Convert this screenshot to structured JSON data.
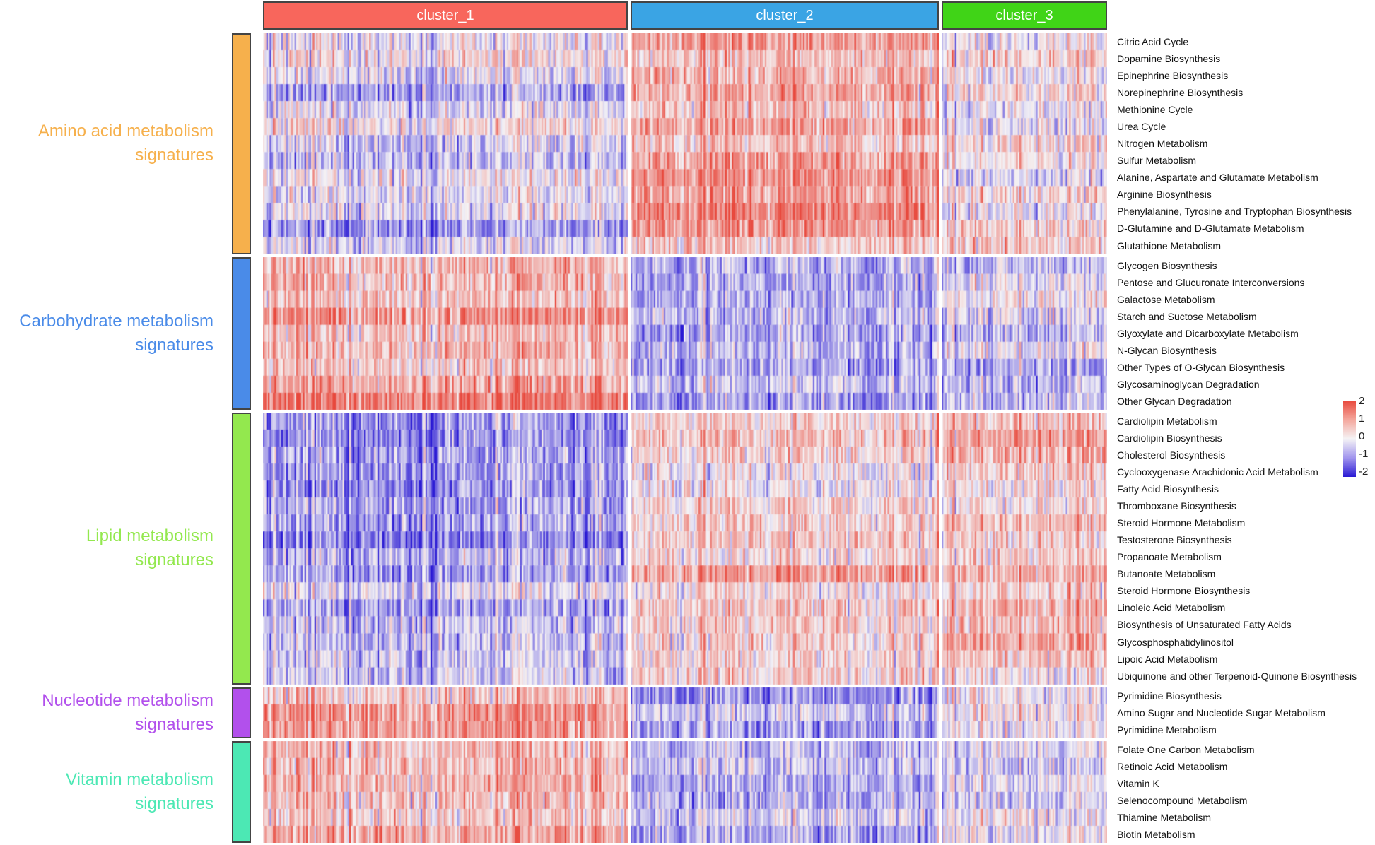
{
  "chart_data": {
    "type": "heatmap",
    "title": "",
    "color_scale": {
      "min": -2,
      "max": 2,
      "ticks": [
        "2",
        "1",
        "0",
        "-1",
        "-2"
      ],
      "colors": {
        "high": "#e8483c",
        "mid": "#f5f3f5",
        "low": "#2a1ad4"
      }
    },
    "clusters": [
      {
        "name": "cluster_1",
        "color": "#f8665c",
        "samples": 220
      },
      {
        "name": "cluster_2",
        "color": "#3aa4e4",
        "samples": 186
      },
      {
        "name": "cluster_3",
        "color": "#40d417",
        "samples": 100
      }
    ],
    "groups": [
      {
        "line1": "Amino acid metabolism",
        "line2": "signatures",
        "color": "#f6b04c",
        "pattern": [
          -0.3,
          0.8,
          0.0
        ],
        "pathways": [
          "Citric Acid Cycle",
          "Dopamine Biosynthesis",
          "Epinephrine Biosynthesis",
          "Norepinephrine Biosynthesis",
          "Methionine Cycle",
          "Urea Cycle",
          "Nitrogen Metabolism",
          "Sulfur Metabolism",
          "Alanine, Aspartate and Glutamate Metabolism",
          "Arginine Biosynthesis",
          "Phenylalanine, Tyrosine and Tryptophan Biosynthesis",
          "D-Glutamine and D-Glutamate Metabolism",
          "Glutathione Metabolism"
        ]
      },
      {
        "line1": "Carbohydrate metabolism",
        "line2": "signatures",
        "color": "#4a8be8",
        "pattern": [
          0.8,
          -0.6,
          -0.2
        ],
        "pathways": [
          "Glycogen Biosynthesis",
          "Pentose and Glucuronate Interconversions",
          "Galactose Metabolism",
          "Starch and Suctose Metabolism",
          "Glyoxylate and Dicarboxylate Metabolism",
          "N-Glycan Biosynthesis",
          "Other Types of O-Glycan Biosynthesis",
          "Glycosaminoglycan Degradation",
          "Other Glycan Degradation"
        ]
      },
      {
        "line1": "Lipid metabolism",
        "line2": "signatures",
        "color": "#93e84e",
        "pattern": [
          -0.7,
          0.4,
          0.6
        ],
        "pathways": [
          "Cardiolipin Metabolism",
          "Cardiolipin Biosynthesis",
          "Cholesterol Biosynthesis",
          "Cyclooxygenase Arachidonic Acid Metabolism",
          "Fatty Acid Biosynthesis",
          "Thromboxane Biosynthesis",
          "Steroid Hormone Metabolism",
          "Testosterone Biosynthesis",
          "Propanoate Metabolism",
          "Butanoate Metabolism",
          "Steroid Hormone Biosynthesis",
          "Linoleic Acid Metabolism",
          "Biosynthesis of Unsaturated Fatty Acids",
          "Glycosphosphatidylinositol",
          "Lipoic Acid Metabolism",
          "Ubiquinone and other Terpenoid-Quinone Biosynthesis"
        ]
      },
      {
        "line1": "Nucleotide metabolism",
        "line2": "signatures",
        "color": "#b250ec",
        "pattern": [
          0.8,
          -0.7,
          0.0
        ],
        "pathways": [
          "Pyrimidine Biosynthesis",
          "Amino Sugar and Nucleotide Sugar Metabolism",
          "Pyrimidine Metabolism"
        ]
      },
      {
        "line1": "Vitamin metabolism",
        "line2": "signatures",
        "color": "#4ce8b4",
        "pattern": [
          0.6,
          -0.5,
          0.0
        ],
        "pathways": [
          "Folate One Carbon Metabolism",
          "Retinoic Acid Metabolism",
          "Vitamin K",
          "Selenocompound Metabolism",
          "Thiamine Metabolism",
          "Biotin Metabolism"
        ]
      }
    ]
  }
}
